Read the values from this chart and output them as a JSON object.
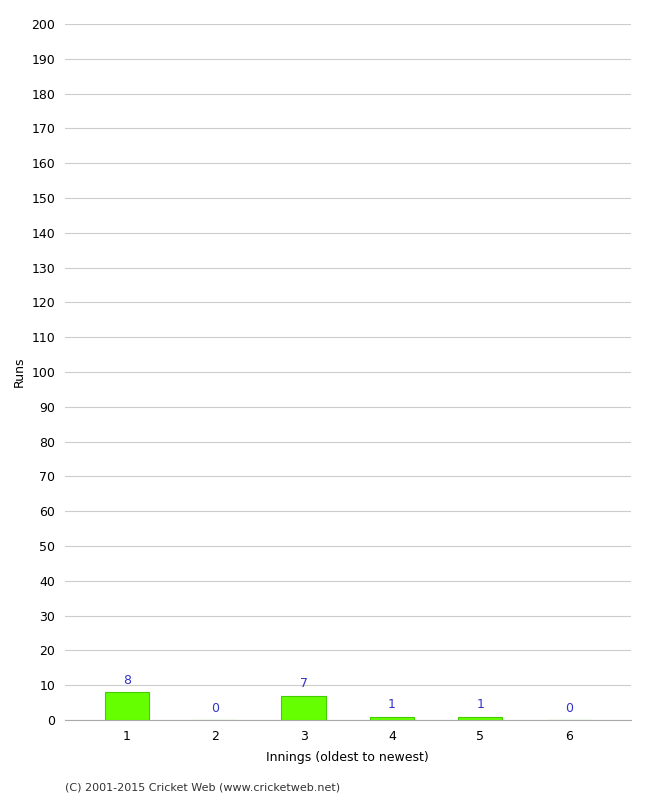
{
  "innings": [
    1,
    2,
    3,
    4,
    5,
    6
  ],
  "runs": [
    8,
    0,
    7,
    1,
    1,
    0
  ],
  "bar_color": "#66ff00",
  "bar_edge_color": "#44cc00",
  "label_color": "#3333cc",
  "ylabel": "Runs",
  "xlabel": "Innings (oldest to newest)",
  "ylim": [
    0,
    200
  ],
  "yticks": [
    0,
    10,
    20,
    30,
    40,
    50,
    60,
    70,
    80,
    90,
    100,
    110,
    120,
    130,
    140,
    150,
    160,
    170,
    180,
    190,
    200
  ],
  "grid_color": "#cccccc",
  "background_color": "#ffffff",
  "footer": "(C) 2001-2015 Cricket Web (www.cricketweb.net)",
  "bar_width": 0.5
}
